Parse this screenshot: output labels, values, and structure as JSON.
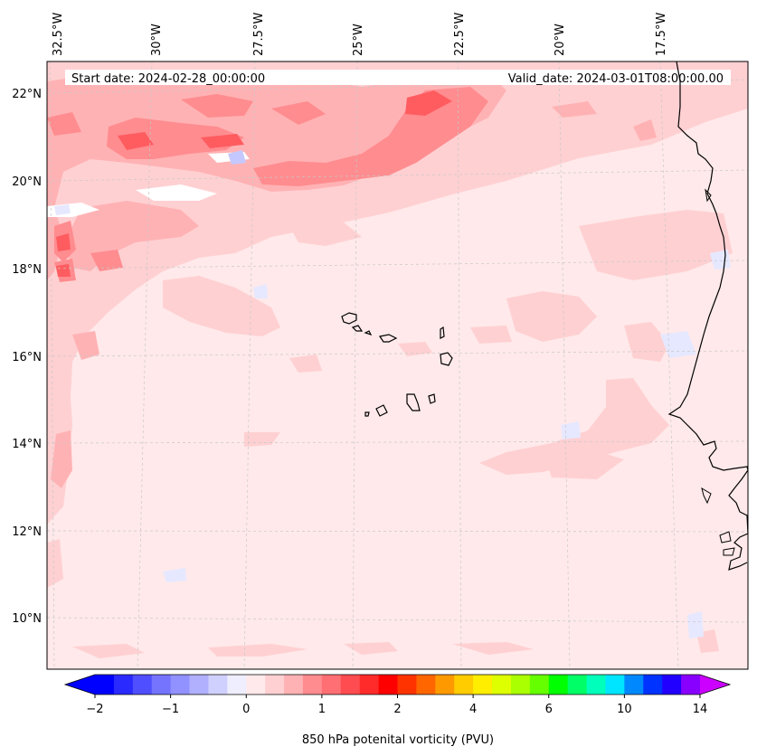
{
  "map": {
    "header": {
      "start_date": "Start date: 2024-02-28_00:00:00",
      "valid_date": "Valid_date: 2024-03-01T08:00:00.00"
    },
    "lon_labels": [
      "32.5°W",
      "30°W",
      "27.5°W",
      "25°W",
      "22.5°W",
      "20°W",
      "17.5°W"
    ],
    "lat_labels": [
      "22°N",
      "20°N",
      "18°N",
      "16°N",
      "14°N",
      "12°N",
      "10°N"
    ],
    "gridlines": "dashed light gray",
    "colors": {
      "background_field": "#ffe9ea",
      "weak_positive": "#ffd0d2",
      "moderate_positive": "#ffb2b4",
      "strong_positive": "#ff6f73",
      "negative": "#e8eaff",
      "coastline": "#000000"
    }
  },
  "colorbar": {
    "label": "850 hPa potenital vorticity (PVU)",
    "tick_labels": [
      "−2",
      "−1",
      "0",
      "1",
      "2",
      "4",
      "6",
      "10",
      "14"
    ],
    "colors": [
      "#0000ff",
      "#2a2aff",
      "#4f4fff",
      "#7474ff",
      "#9191ff",
      "#b0b0ff",
      "#d0d0ff",
      "#eeeeff",
      "#ffe9ea",
      "#ffd0d2",
      "#ffb2b4",
      "#ff8c8f",
      "#ff6f73",
      "#ff4c50",
      "#ff2b2b",
      "#ff0000",
      "#ff3300",
      "#ff6600",
      "#ff9900",
      "#ffcc00",
      "#ffee00",
      "#ddff00",
      "#aaff00",
      "#66ff00",
      "#00ff00",
      "#00ff66",
      "#00ffbb",
      "#00e5ff",
      "#0088ff",
      "#0033ff",
      "#2200ff",
      "#8800ff"
    ],
    "extend_low_color": "#0000ff",
    "extend_high_color": "#cc00ff"
  }
}
